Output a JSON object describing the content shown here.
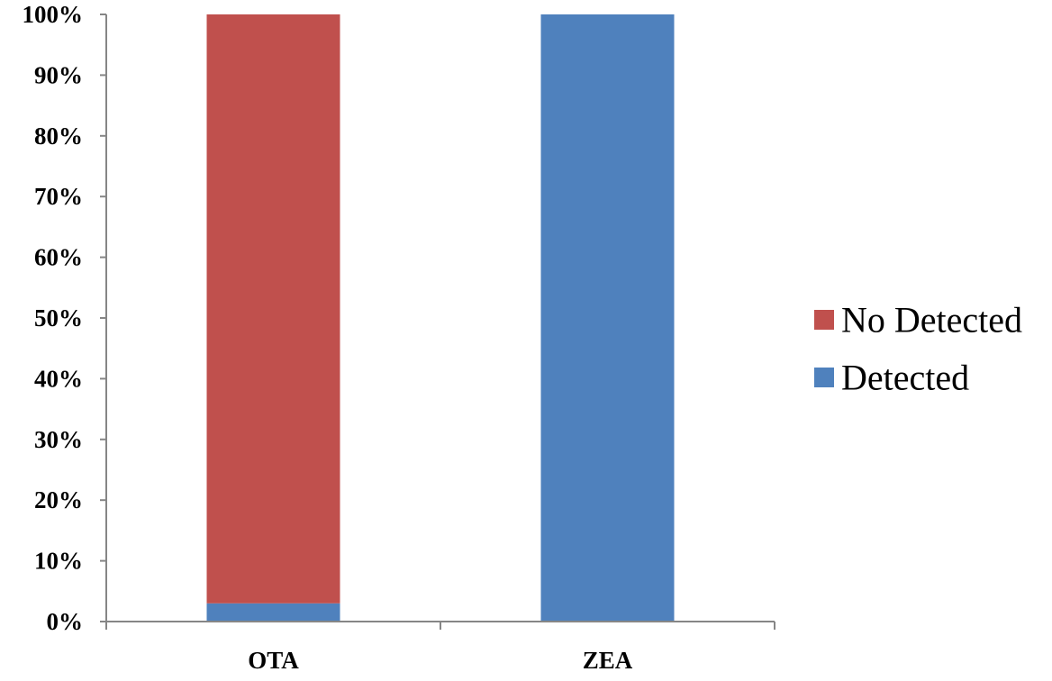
{
  "chart_data": {
    "type": "bar",
    "stacked": true,
    "normalized_percent": true,
    "categories": [
      "OTA",
      "ZEA"
    ],
    "series": [
      {
        "name": "Detected",
        "values": [
          3,
          100
        ],
        "color": "#4f81bd"
      },
      {
        "name": "No Detected",
        "values": [
          97,
          0
        ],
        "color": "#c0504d"
      }
    ],
    "y_tick_labels": [
      "0%",
      "10%",
      "20%",
      "30%",
      "40%",
      "50%",
      "60%",
      "70%",
      "80%",
      "90%",
      "100%"
    ],
    "ylim": [
      0,
      100
    ],
    "grid": false,
    "legend": {
      "position": "right",
      "entries": [
        {
          "label": "No Detected",
          "color": "#c0504d"
        },
        {
          "label": "Detected",
          "color": "#4f81bd"
        }
      ]
    },
    "title": "",
    "xlabel": "",
    "ylabel": ""
  }
}
